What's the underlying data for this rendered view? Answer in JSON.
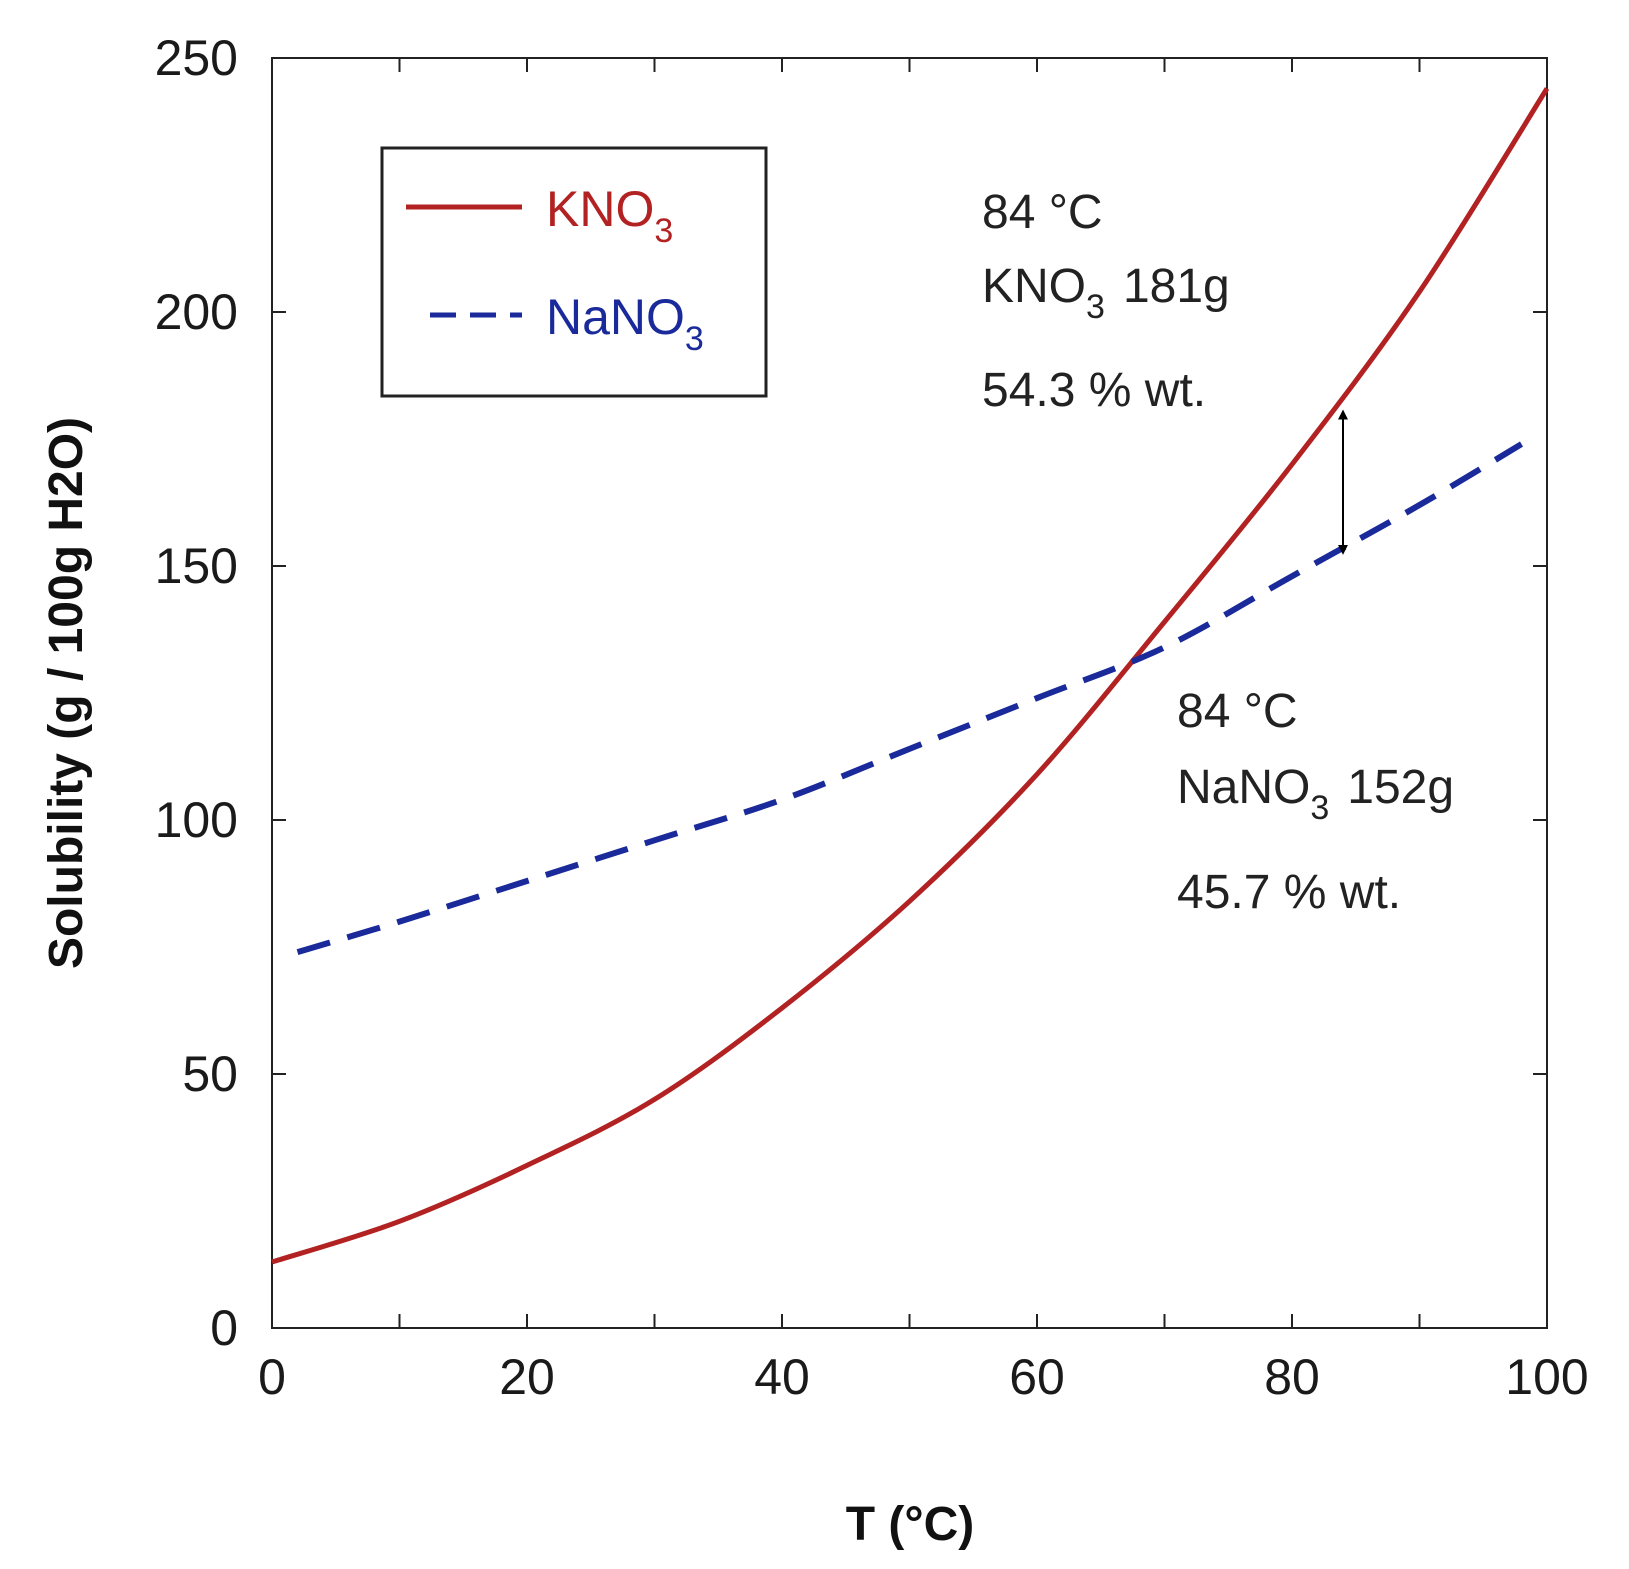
{
  "chart_data": {
    "type": "line",
    "title": "",
    "xlabel": "T  (°C)",
    "ylabel": "Solubility  (g / 100g H2O)",
    "xlim": [
      0,
      100
    ],
    "ylim": [
      0,
      250
    ],
    "xticks": [
      0,
      20,
      40,
      60,
      80,
      100
    ],
    "yticks": [
      0,
      50,
      100,
      150,
      200,
      250
    ],
    "xtick_labels": [
      "0",
      "20",
      "40",
      "60",
      "80",
      "100"
    ],
    "ytick_labels": [
      "0",
      "50",
      "100",
      "150",
      "200",
      "250"
    ],
    "grid": false,
    "legend_position": "top-left",
    "series": [
      {
        "name": "KNO3",
        "label_main": "KNO",
        "label_sub": "3",
        "color": "#b22222",
        "style": "solid",
        "x": [
          0,
          10,
          20,
          30,
          40,
          50,
          60,
          70,
          80,
          90,
          100
        ],
        "y": [
          13,
          21,
          32,
          45,
          63,
          84,
          109,
          139,
          170,
          204,
          244
        ]
      },
      {
        "name": "NaNO3",
        "label_main": "NaNO",
        "label_sub": "3",
        "color": "#1a2a9a",
        "style": "dashed",
        "x": [
          2,
          10,
          20,
          30,
          40,
          50,
          60,
          70,
          80,
          90,
          98
        ],
        "y": [
          74,
          80,
          88,
          96,
          104,
          114,
          124,
          134,
          148,
          162,
          174
        ]
      }
    ],
    "annotations": [
      {
        "id": "kno3",
        "line1": "84 °C",
        "line2_main": "KNO",
        "line2_sub": "3",
        "line2_value": "181g",
        "line3": "54.3 % wt."
      },
      {
        "id": "nano3",
        "line1": "84 °C",
        "line2_main": "NaNO",
        "line2_sub": "3",
        "line2_value": "152g",
        "line3": "45.7 % wt."
      }
    ],
    "arrow": {
      "x": 84,
      "y_top": 181,
      "y_bottom": 152
    }
  }
}
